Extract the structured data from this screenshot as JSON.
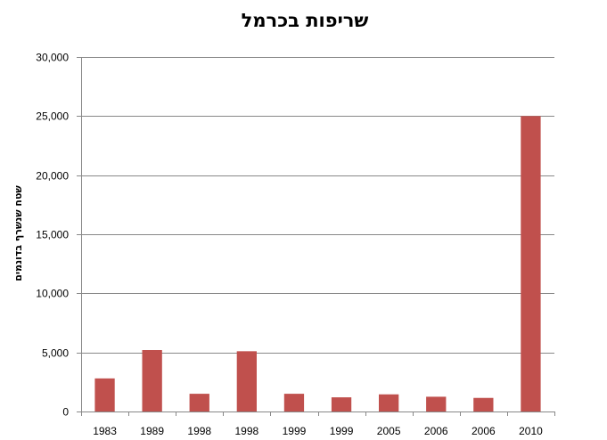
{
  "chart_data": {
    "type": "bar",
    "title": "שריפות בכרמל",
    "xlabel": "",
    "ylabel": "שטח שנשרף בדונמים",
    "categories": [
      "1983",
      "1989",
      "1998",
      "1998",
      "1999",
      "1999",
      "2005",
      "2006",
      "2006",
      "2010"
    ],
    "values": [
      2800,
      5200,
      1500,
      5100,
      1500,
      1200,
      1450,
      1250,
      1150,
      25000
    ],
    "ylim": [
      0,
      30000
    ],
    "yticks": [
      0,
      5000,
      10000,
      15000,
      20000,
      25000,
      30000
    ],
    "ytick_labels": [
      "0",
      "5,000",
      "10,000",
      "15,000",
      "20,000",
      "25,000",
      "30,000"
    ],
    "grid": true,
    "legend": "none",
    "bar_color": "#c0504d"
  }
}
